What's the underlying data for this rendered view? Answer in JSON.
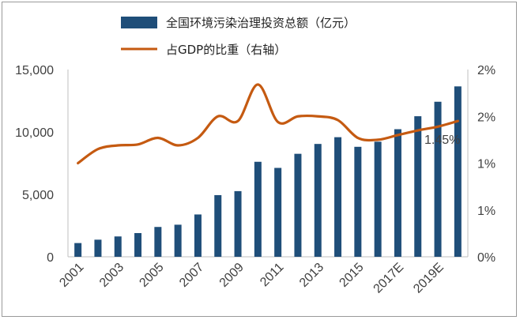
{
  "chart_data": {
    "type": "bar+line",
    "categories": [
      "2001",
      "2002",
      "2003",
      "2004",
      "2005",
      "2006",
      "2007",
      "2008",
      "2009",
      "2010",
      "2011",
      "2012",
      "2013",
      "2014",
      "2015",
      "2016",
      "2017E",
      "2018E",
      "2019E",
      "2020E"
    ],
    "x_tick_labels": [
      "2001",
      "2003",
      "2005",
      "2007",
      "2009",
      "2011",
      "2013",
      "2015",
      "2017E",
      "2019E"
    ],
    "series": [
      {
        "name": "全国环境污染治理投资总额（亿元）",
        "type": "bar",
        "axis": "left",
        "color": "#1f4e79",
        "values": [
          1100,
          1370,
          1630,
          1900,
          2390,
          2570,
          3390,
          4940,
          5260,
          7610,
          7120,
          8250,
          9040,
          9580,
          8810,
          9220,
          10220,
          11260,
          12420,
          13650
        ]
      },
      {
        "name": "占GDP的比重（右轴）",
        "type": "line",
        "axis": "right",
        "color": "#c55a11",
        "values": [
          1.0,
          1.15,
          1.19,
          1.2,
          1.27,
          1.19,
          1.27,
          1.5,
          1.45,
          1.84,
          1.44,
          1.5,
          1.5,
          1.46,
          1.27,
          1.25,
          1.3,
          1.35,
          1.39,
          1.45
        ]
      }
    ],
    "left_axis": {
      "ticks": [
        "0",
        "5,000",
        "10,000",
        "15,000"
      ],
      "ylim": [
        0,
        15000
      ]
    },
    "right_axis": {
      "ticks": [
        "0%",
        "1%",
        "1%",
        "2%",
        "2%"
      ],
      "ylim": [
        0,
        2
      ]
    },
    "annotation": {
      "text": "1.45%",
      "series": 1,
      "index": 19
    },
    "legend_position": "top"
  }
}
